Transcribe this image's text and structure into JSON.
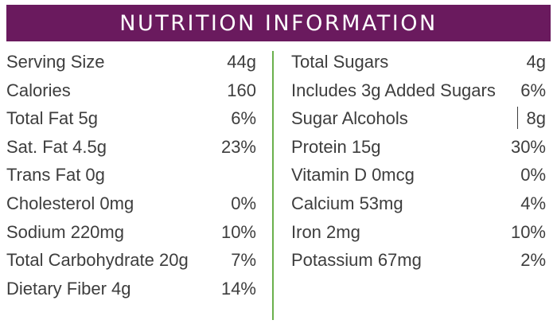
{
  "header": {
    "title": "NUTRITION INFORMATION"
  },
  "left_rows": [
    {
      "name": "Serving Size",
      "value": "44g"
    },
    {
      "name": "Calories",
      "value": "160"
    },
    {
      "name": "Total Fat 5g",
      "value": "6%"
    },
    {
      "name": "Sat. Fat 4.5g",
      "value": "23%"
    },
    {
      "name": "Trans Fat 0g",
      "value": ""
    },
    {
      "name": "Cholesterol 0mg",
      "value": "0%"
    },
    {
      "name": "Sodium 220mg",
      "value": "10%"
    },
    {
      "name": "Total Carbohydrate 20g",
      "value": "7%"
    },
    {
      "name": "Dietary Fiber 4g",
      "value": "14%"
    }
  ],
  "right_rows": [
    {
      "name": "Total Sugars",
      "value": "4g"
    },
    {
      "name": "Includes 3g Added Sugars",
      "value": "6%"
    },
    {
      "name": "Sugar Alcohols",
      "value": "8g"
    },
    {
      "name": "Protein 15g",
      "value": "30%"
    },
    {
      "name": "Vitamin D 0mcg",
      "value": "0%"
    },
    {
      "name": "Calcium 53mg",
      "value": "4%"
    },
    {
      "name": "Iron 2mg",
      "value": "10%"
    },
    {
      "name": "Potassium 67mg",
      "value": "2%"
    }
  ],
  "colors": {
    "banner": "#6a1a5e",
    "divider": "#6ab04c",
    "text": "#3d3d3d"
  }
}
